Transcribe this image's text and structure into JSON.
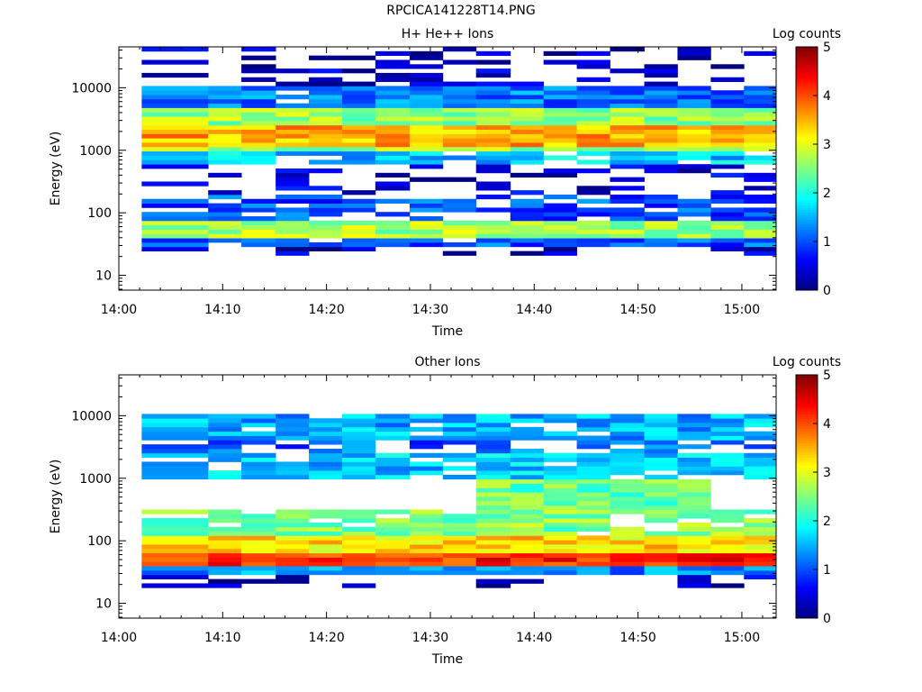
{
  "page_title": "RPCICA141228T14.PNG",
  "colors": {
    "jet_stops": [
      "#00007f",
      "#0000ff",
      "#007fff",
      "#00ffff",
      "#7fff7f",
      "#ffff00",
      "#ff7f00",
      "#ff0000",
      "#7f0000"
    ],
    "background": "#ffffff",
    "axis": "#000000"
  },
  "chart_data": [
    {
      "type": "heatmap",
      "title": "H+ He++ Ions",
      "xlabel": "Time",
      "ylabel": "Energy (eV)",
      "colorbar_label": "Log counts",
      "colorbar_range": [
        0,
        5
      ],
      "colorbar_ticks": [
        "0",
        "1",
        "2",
        "3",
        "4",
        "5"
      ],
      "x_ticks": [
        "14:00",
        "14:10",
        "14:20",
        "14:30",
        "14:40",
        "14:50",
        "15:00"
      ],
      "x_range_minutes": [
        0,
        63.3
      ],
      "y_scale": "log",
      "y_range": [
        5.8,
        45000
      ],
      "y_ticks": [
        {
          "value": 10,
          "label": "10"
        },
        {
          "value": 100,
          "label": "100"
        },
        {
          "value": 1000,
          "label": "1000"
        },
        {
          "value": 10000,
          "label": "10000"
        }
      ],
      "time_bins_start_minutes": [
        2.2,
        8.6,
        11.8,
        15.1,
        18.3,
        21.5,
        24.7,
        28.0,
        31.2,
        34.4,
        37.7,
        40.9,
        44.1,
        47.3,
        50.6,
        53.8,
        57.0,
        60.2
      ],
      "time_bin_end_minutes": 63.3,
      "log_counts_description": "strongest band ~1200-2500 eV (log counts 3-3.8), secondary band 40-70 eV (~2.5-3), sparse low counts 20-400 eV and 5000-40000 eV",
      "profile": [
        {
          "e_low": 20,
          "e_high": 30,
          "level": 0.3,
          "fill": 0.35
        },
        {
          "e_low": 30,
          "e_high": 40,
          "level": 1.0,
          "fill": 0.9
        },
        {
          "e_low": 40,
          "e_high": 70,
          "level": 2.7,
          "fill": 1.0
        },
        {
          "e_low": 70,
          "e_high": 200,
          "level": 1.0,
          "fill": 0.7
        },
        {
          "e_low": 200,
          "e_high": 600,
          "level": 0.4,
          "fill": 0.35
        },
        {
          "e_low": 600,
          "e_high": 900,
          "level": 1.6,
          "fill": 0.9
        },
        {
          "e_low": 900,
          "e_high": 1200,
          "level": 2.6,
          "fill": 1.0
        },
        {
          "e_low": 1200,
          "e_high": 2500,
          "level": 3.5,
          "fill": 1.0
        },
        {
          "e_low": 2500,
          "e_high": 4500,
          "level": 2.6,
          "fill": 1.0
        },
        {
          "e_low": 4500,
          "e_high": 11000,
          "level": 1.2,
          "fill": 0.9
        },
        {
          "e_low": 11000,
          "e_high": 42000,
          "level": 0.3,
          "fill": 0.3
        }
      ]
    },
    {
      "type": "heatmap",
      "title": "Other Ions",
      "xlabel": "Time",
      "ylabel": "Energy (eV)",
      "colorbar_label": "Log counts",
      "colorbar_range": [
        0,
        5
      ],
      "colorbar_ticks": [
        "0",
        "1",
        "2",
        "3",
        "4",
        "5"
      ],
      "x_ticks": [
        "14:00",
        "14:10",
        "14:20",
        "14:30",
        "14:40",
        "14:50",
        "15:00"
      ],
      "x_range_minutes": [
        0,
        63.3
      ],
      "y_scale": "log",
      "y_range": [
        5.8,
        45000
      ],
      "y_ticks": [
        {
          "value": 10,
          "label": "10"
        },
        {
          "value": 100,
          "label": "100"
        },
        {
          "value": 1000,
          "label": "1000"
        },
        {
          "value": 10000,
          "label": "10000"
        }
      ],
      "time_bins_start_minutes": [
        2.2,
        8.6,
        11.8,
        15.1,
        18.3,
        21.5,
        24.7,
        28.0,
        31.2,
        34.4,
        37.7,
        40.9,
        44.1,
        47.3,
        50.6,
        53.8,
        57.0,
        60.2
      ],
      "time_bin_end_minutes": 63.3,
      "log_counts_description": "intense band 40-60 eV (log counts 4-4.5), 60-300 eV moderate-high (2.5-3.8), enhanced 400-2000 eV after 14:35, 900-10000 eV low (1-2)",
      "profile": [
        {
          "e_low": 18,
          "e_high": 30,
          "level": 0.3,
          "fill": 0.3
        },
        {
          "e_low": 30,
          "e_high": 38,
          "level": 1.3,
          "fill": 1.0
        },
        {
          "e_low": 38,
          "e_high": 60,
          "level": 4.2,
          "fill": 1.0
        },
        {
          "e_low": 60,
          "e_high": 130,
          "level": 3.3,
          "fill": 1.0
        },
        {
          "e_low": 130,
          "e_high": 300,
          "level": 2.5,
          "fill": 0.85
        },
        {
          "e_low": 900,
          "e_high": 2400,
          "level": 1.6,
          "fill": 0.9
        },
        {
          "e_low": 2400,
          "e_high": 4000,
          "level": 1.1,
          "fill": 0.5
        },
        {
          "e_low": 4000,
          "e_high": 10000,
          "level": 1.5,
          "fill": 0.9
        }
      ],
      "enhanced_interval_minutes": [
        34.4,
        57.0
      ],
      "enhanced_profile": [
        {
          "e_low": 300,
          "e_high": 1000,
          "level": 2.4,
          "fill": 1.0
        }
      ]
    }
  ]
}
